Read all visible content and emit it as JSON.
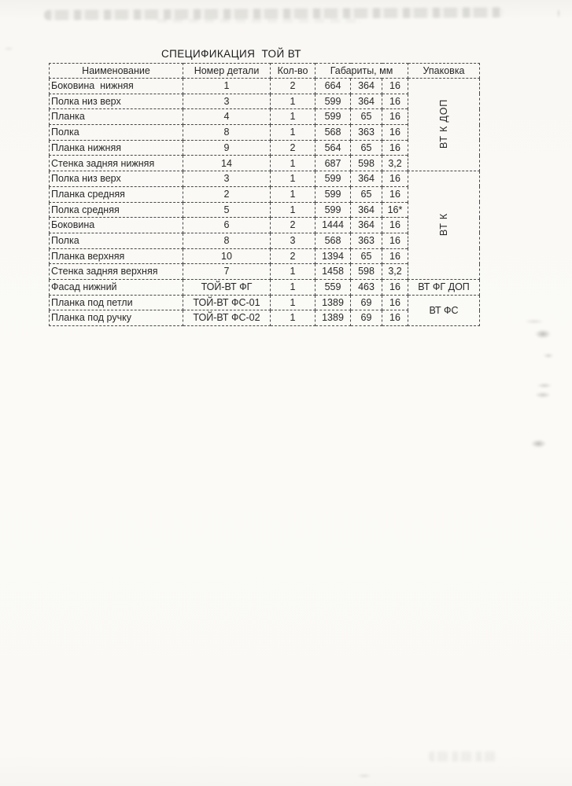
{
  "document": {
    "title": "СПЕЦИФИКАЦИЯ  ТОЙ ВТ"
  },
  "table": {
    "headers": [
      "Наименование",
      "Номер детали",
      "Кол-во",
      "Габариты, мм",
      "Упаковка"
    ],
    "rows": [
      [
        "Боковина  нижняя",
        "1",
        "2",
        "664",
        "364",
        "16"
      ],
      [
        "Полка низ верх",
        "3",
        "1",
        "599",
        "364",
        "16"
      ],
      [
        "Планка",
        "4",
        "1",
        "599",
        "65",
        "16"
      ],
      [
        "Полка",
        "8",
        "1",
        "568",
        "363",
        "16"
      ],
      [
        "Планка нижняя",
        "9",
        "2",
        "564",
        "65",
        "16"
      ],
      [
        "Стенка задняя нижняя",
        "14",
        "1",
        "687",
        "598",
        "3,2"
      ],
      [
        "Полка низ верх",
        "3",
        "1",
        "599",
        "364",
        "16"
      ],
      [
        "Планка средняя",
        "2",
        "1",
        "599",
        "65",
        "16"
      ],
      [
        "Полка средняя",
        "5",
        "1",
        "599",
        "364",
        "16*"
      ],
      [
        "Боковина",
        "6",
        "2",
        "1444",
        "364",
        "16"
      ],
      [
        "Полка",
        "8",
        "3",
        "568",
        "363",
        "16"
      ],
      [
        "Планка верхняя",
        "10",
        "2",
        "1394",
        "65",
        "16"
      ],
      [
        "Стенка задняя верхняя",
        "7",
        "1",
        "1458",
        "598",
        "3,2"
      ],
      [
        "Фасад нижний",
        "ТОЙ-ВТ ФГ",
        "1",
        "559",
        "463",
        "16"
      ],
      [
        "Планка под петли",
        "ТОЙ-ВТ ФС-01",
        "1",
        "1389",
        "69",
        "16"
      ],
      [
        "Планка под ручку",
        "ТОЙ-ВТ ФС-02",
        "1",
        "1389",
        "69",
        "16"
      ]
    ],
    "packaging_groups": [
      {
        "label": "ВТ К ДОП",
        "rows": 6,
        "vertical": true
      },
      {
        "label": "ВТ К",
        "rows": 7,
        "vertical": true
      },
      {
        "label": "ВТ ФГ ДОП",
        "rows": 1,
        "vertical": false
      },
      {
        "label": "ВТ ФС",
        "rows": 2,
        "vertical": false
      }
    ]
  },
  "colors": {
    "paper": "#faf9f5",
    "ink": "#272727",
    "table_border": "#474747"
  }
}
